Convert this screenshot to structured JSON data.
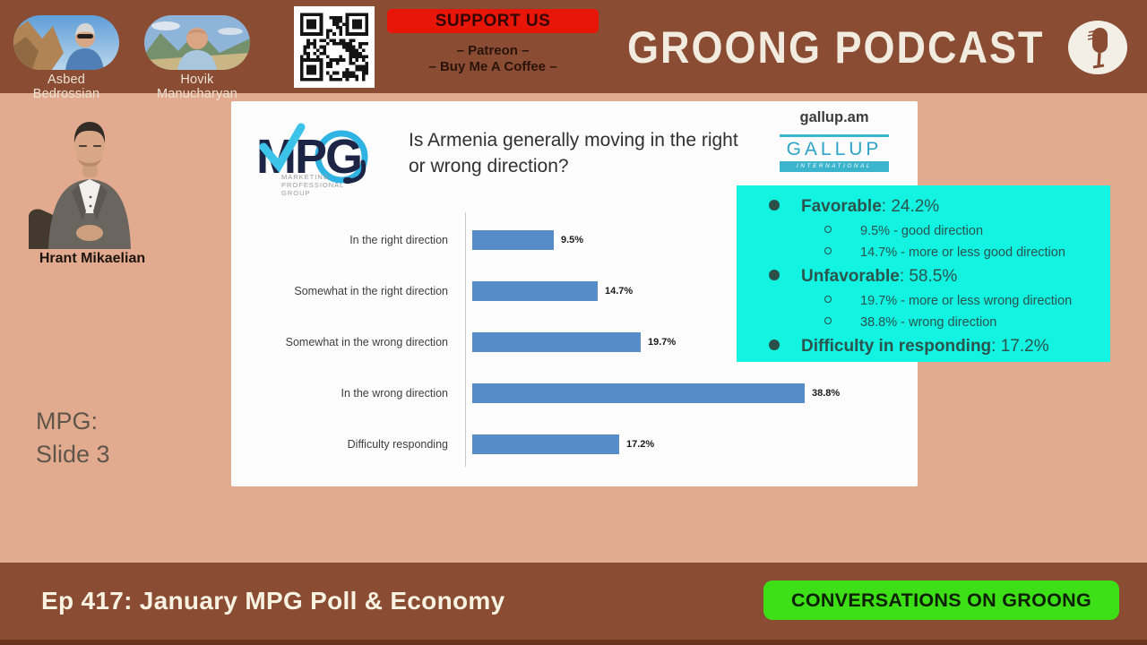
{
  "header": {
    "hosts": [
      {
        "name": "Asbed Bedrossian"
      },
      {
        "name": "Hovik Manucharyan"
      }
    ],
    "support": {
      "button_label": "SUPPORT US",
      "line1": "– Patreon –",
      "line2": "– Buy Me A Coffee –"
    },
    "brand": "GROONG PODCAST"
  },
  "guest": {
    "name": "Hrant Mikaelian"
  },
  "slide_ref": {
    "line1": "MPG:",
    "line2": "Slide 3"
  },
  "slide": {
    "mpg_logo": {
      "text": "MPG",
      "sub_lines": [
        "MARKETING",
        "PROFESSIONAL",
        "GROUP"
      ]
    },
    "title": "Is Armenia generally moving in the right or wrong direction?",
    "gallup": {
      "domain": "gallup.am",
      "name": "GALLUP",
      "sub": "INTERNATIONAL"
    }
  },
  "chart_data": {
    "type": "bar",
    "orientation": "horizontal",
    "title": "Is Armenia generally moving in the right or wrong direction?",
    "categories": [
      "In the right direction",
      "Somewhat in the right direction",
      "Somewhat in the wrong direction",
      "In the wrong direction",
      "Difficulty responding"
    ],
    "values": [
      9.5,
      14.7,
      19.7,
      38.8,
      17.2
    ],
    "value_labels": [
      "9.5%",
      "14.7%",
      "19.7%",
      "38.8%",
      "17.2%"
    ],
    "xlabel": "",
    "ylabel": "",
    "xlim": [
      0,
      45
    ],
    "grid": false,
    "legend": false,
    "bar_color": "#568cc7"
  },
  "callout": {
    "items": [
      {
        "level": 1,
        "bold": "Favorable",
        "rest": ": 24.2%"
      },
      {
        "level": 2,
        "text": "9.5% - good direction"
      },
      {
        "level": 2,
        "text": "14.7% - more or less good direction"
      },
      {
        "level": 1,
        "bold": "Unfavorable",
        "rest": ": 58.5%"
      },
      {
        "level": 2,
        "text": "19.7% - more or less wrong direction"
      },
      {
        "level": 2,
        "text": "38.8% - wrong direction"
      },
      {
        "level": 1,
        "bold": "Difficulty in responding",
        "rest": ": 17.2%"
      }
    ]
  },
  "footer": {
    "episode": "Ep 417: January MPG Poll & Economy",
    "badge": "CONVERSATIONS ON GROONG"
  },
  "colors": {
    "bar_brown": "#8a4c32",
    "background_tan": "#e2ab8f",
    "callout_cyan": "#12f3e2",
    "support_red": "#e81509",
    "badge_green": "#3ddf17",
    "chart_bar_blue": "#568cc7"
  }
}
